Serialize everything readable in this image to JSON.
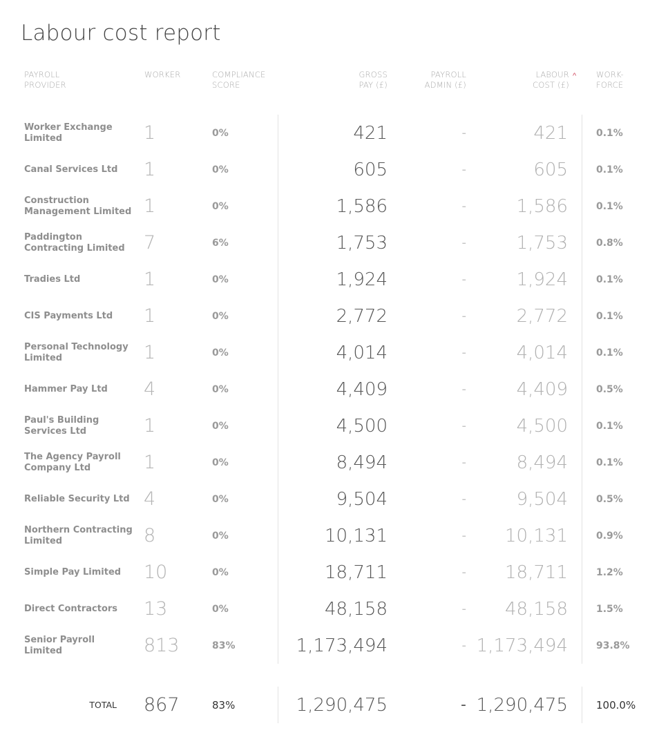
{
  "title": "Labour cost report",
  "headers": {
    "provider": [
      "PAYROLL",
      "PROVIDER"
    ],
    "worker": [
      "WORKER",
      ""
    ],
    "compliance": [
      "COMPLIANCE",
      "SCORE"
    ],
    "gross": [
      "GROSS",
      "PAY (£)"
    ],
    "admin": [
      "PAYROLL",
      "ADMIN (£)"
    ],
    "labour": [
      "LABOUR",
      "COST (£)"
    ],
    "workforce": [
      "WORK-",
      "FORCE"
    ],
    "sort_indicator": "^"
  },
  "rows": [
    {
      "provider": "Worker Exchange Limited",
      "workers": "1",
      "compliance": "0%",
      "gross": "421",
      "admin": "-",
      "labour": "421",
      "workforce": "0.1%"
    },
    {
      "provider": "Canal Services Ltd",
      "workers": "1",
      "compliance": "0%",
      "gross": "605",
      "admin": "-",
      "labour": "605",
      "workforce": "0.1%"
    },
    {
      "provider": "Construction Management Limited",
      "workers": "1",
      "compliance": "0%",
      "gross": "1,586",
      "admin": "-",
      "labour": "1,586",
      "workforce": "0.1%"
    },
    {
      "provider": "Paddington Contracting Limited",
      "workers": "7",
      "compliance": "6%",
      "gross": "1,753",
      "admin": "-",
      "labour": "1,753",
      "workforce": "0.8%"
    },
    {
      "provider": "Tradies Ltd",
      "workers": "1",
      "compliance": "0%",
      "gross": "1,924",
      "admin": "-",
      "labour": "1,924",
      "workforce": "0.1%"
    },
    {
      "provider": "CIS Payments Ltd",
      "workers": "1",
      "compliance": "0%",
      "gross": "2,772",
      "admin": "-",
      "labour": "2,772",
      "workforce": "0.1%"
    },
    {
      "provider": "Personal Technology Limited",
      "workers": "1",
      "compliance": "0%",
      "gross": "4,014",
      "admin": "-",
      "labour": "4,014",
      "workforce": "0.1%"
    },
    {
      "provider": "Hammer Pay Ltd",
      "workers": "4",
      "compliance": "0%",
      "gross": "4,409",
      "admin": "-",
      "labour": "4,409",
      "workforce": "0.5%"
    },
    {
      "provider": "Paul's Building Services Ltd",
      "workers": "1",
      "compliance": "0%",
      "gross": "4,500",
      "admin": "-",
      "labour": "4,500",
      "workforce": "0.1%"
    },
    {
      "provider": "The Agency Payroll Company Ltd",
      "workers": "1",
      "compliance": "0%",
      "gross": "8,494",
      "admin": "-",
      "labour": "8,494",
      "workforce": "0.1%"
    },
    {
      "provider": "Reliable Security Ltd",
      "workers": "4",
      "compliance": "0%",
      "gross": "9,504",
      "admin": "-",
      "labour": "9,504",
      "workforce": "0.5%"
    },
    {
      "provider": "Northern Contracting Limited",
      "workers": "8",
      "compliance": "0%",
      "gross": "10,131",
      "admin": "-",
      "labour": "10,131",
      "workforce": "0.9%"
    },
    {
      "provider": "Simple Pay Limited",
      "workers": "10",
      "compliance": "0%",
      "gross": "18,711",
      "admin": "-",
      "labour": "18,711",
      "workforce": "1.2%"
    },
    {
      "provider": "Direct Contractors",
      "workers": "13",
      "compliance": "0%",
      "gross": "48,158",
      "admin": "-",
      "labour": "48,158",
      "workforce": "1.5%"
    },
    {
      "provider": "Senior Payroll Limited",
      "workers": "813",
      "compliance": "83%",
      "gross": "1,173,494",
      "admin": "-",
      "labour": "1,173,494",
      "workforce": "93.8%"
    }
  ],
  "total": {
    "label": "TOTAL",
    "workers": "867",
    "compliance": "83%",
    "gross": "1,290,475",
    "admin": "-",
    "labour": "1,290,475",
    "workforce": "100.0%"
  },
  "colors": {
    "sort_accent": "#d0485e",
    "divider": "#e2e2e2"
  }
}
